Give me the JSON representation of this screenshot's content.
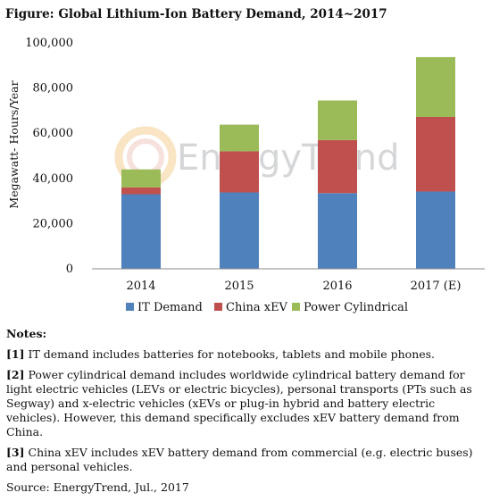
{
  "figure_title": "Figure: Global Lithium-Ion Battery Demand, 2014~2017",
  "watermark": "EnergyTrend",
  "chart_data": {
    "type": "bar",
    "stacked": true,
    "categories": [
      "2014",
      "2015",
      "2016",
      "2017 (E)"
    ],
    "series": [
      {
        "name": "IT Demand",
        "color": "#4f81bd",
        "values": [
          33000,
          33800,
          33500,
          34200
        ]
      },
      {
        "name": "China xEV",
        "color": "#c0504d",
        "values": [
          3000,
          18200,
          23500,
          33000
        ]
      },
      {
        "name": "Power Cylindrical",
        "color": "#9bbb59",
        "values": [
          8000,
          11800,
          17500,
          26500
        ]
      }
    ],
    "ylabel": "Megawatt- Hours/Year",
    "xlabel": "",
    "ylim": [
      0,
      100000
    ],
    "yticks": [
      "0",
      "20,000",
      "40,000",
      "60,000",
      "80,000",
      "100,000"
    ],
    "grid": false,
    "legend_position": "bottom"
  },
  "notes": {
    "heading": "Notes:",
    "items": [
      {
        "tag": "[1]",
        "text": " IT demand includes batteries for notebooks, tablets and mobile phones."
      },
      {
        "tag": "[2]",
        "text": " Power cylindrical demand includes worldwide cylindrical battery demand for light electric vehicles (LEVs or electric bicycles), personal transports (PTs such as Segway) and x-electric vehicles (xEVs or plug-in hybrid and battery electric vehicles). However, this demand specifically excludes xEV battery demand from China."
      },
      {
        "tag": "[3]",
        "text": " China xEV includes xEV battery demand from commercial (e.g. electric buses) and personal vehicles."
      }
    ],
    "source": "Source: EnergyTrend, Jul., 2017"
  }
}
